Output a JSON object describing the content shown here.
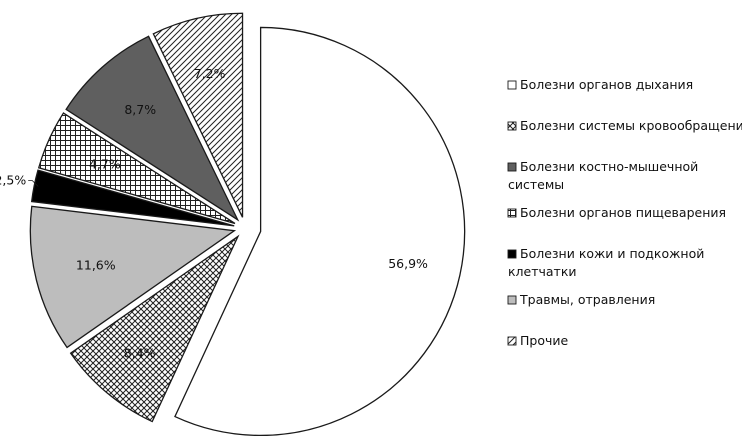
{
  "chart_data": {
    "type": "pie",
    "title": "",
    "legend_position": "right",
    "categories": [
      "Болезни органов дыхания",
      "Болезни системы кровообращения",
      "Болезни костно-мышечной системы",
      "Болезни органов пищеварения",
      "Болезни кожи и подкожной клетчатки",
      "Травмы, отравления",
      "Прочие"
    ],
    "legend_lines": [
      [
        "Болезни органов дыхания"
      ],
      [
        "Болезни системы кровообращения"
      ],
      [
        "Болезни костно-мышечной",
        "системы"
      ],
      [
        "Болезни органов пищеварения"
      ],
      [
        "Болезни кожи и подкожной",
        "клетчатки"
      ],
      [
        "Травмы, отравления"
      ],
      [
        "Прочие"
      ]
    ],
    "values": [
      56.9,
      8.4,
      11.6,
      2.5,
      4.7,
      8.7,
      7.2
    ],
    "value_labels": [
      "56,9%",
      "8,4%",
      "11,6%",
      "2,5%",
      "4,7%",
      "8,7%",
      "7,2%"
    ],
    "slice_categories": [
      0,
      1,
      5,
      4,
      3,
      2,
      6
    ],
    "fills": [
      "white",
      "crosshatch-diagonal",
      "#bdbdbd",
      "#000000",
      "grid",
      "#5f5f5f",
      "hatch-diagonal"
    ],
    "legend_fills": [
      "white",
      "crosshatch-diagonal",
      "#5f5f5f",
      "grid",
      "#000000",
      "#bdbdbd",
      "hatch-diagonal"
    ]
  }
}
